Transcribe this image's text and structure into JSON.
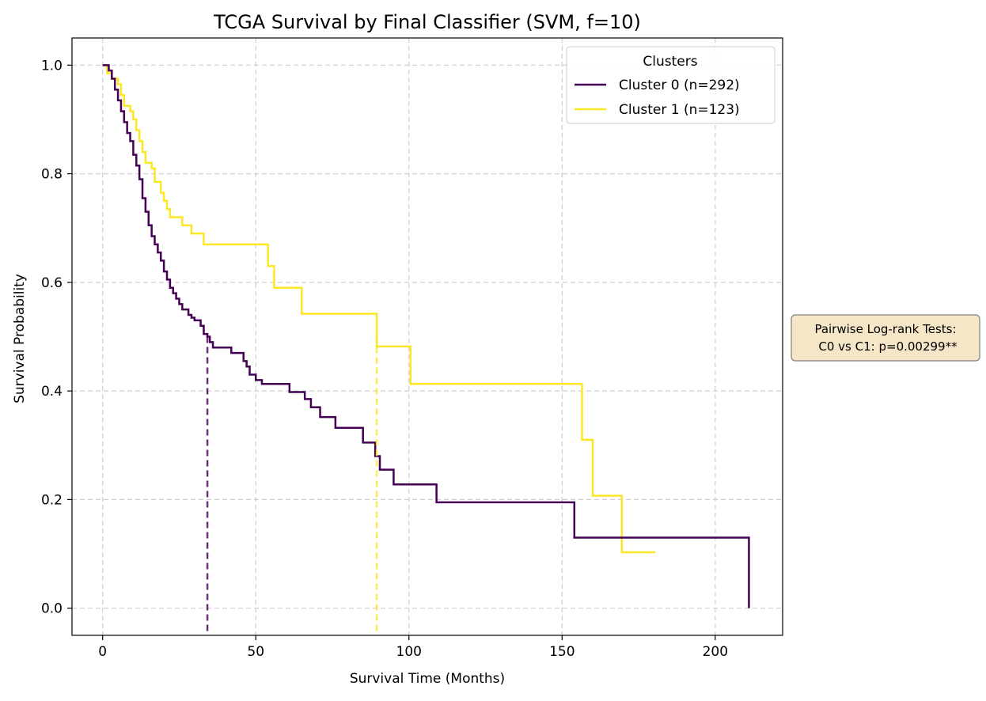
{
  "chart_data": {
    "type": "line",
    "step": true,
    "title": "TCGA Survival by Final Classifier (SVM, f=10)",
    "xlabel": "Survival Time (Months)",
    "ylabel": "Survival Probability",
    "xlim": [
      -10,
      222
    ],
    "ylim": [
      -0.05,
      1.05
    ],
    "xticks": [
      0,
      50,
      100,
      150,
      200
    ],
    "yticks": [
      0.0,
      0.2,
      0.4,
      0.6,
      0.8,
      1.0
    ],
    "xtick_labels": [
      "0",
      "50",
      "100",
      "150",
      "200"
    ],
    "ytick_labels": [
      "0.0",
      "0.2",
      "0.4",
      "0.6",
      "0.8",
      "1.0"
    ],
    "grid": true,
    "legend": {
      "title": "Clusters",
      "position": "top-right"
    },
    "annotation": {
      "lines": [
        "Pairwise Log-rank Tests:",
        "C0 vs C1: p=0.00299**"
      ],
      "position": "right-outside"
    },
    "series": [
      {
        "name": "Cluster 0 (n=292)",
        "color": "#440154",
        "median": 34.2,
        "points": [
          [
            0,
            1.0
          ],
          [
            1.5,
            1.0
          ],
          [
            2,
            0.99
          ],
          [
            3,
            0.975
          ],
          [
            4,
            0.955
          ],
          [
            5,
            0.935
          ],
          [
            6,
            0.915
          ],
          [
            7,
            0.895
          ],
          [
            8,
            0.875
          ],
          [
            9,
            0.86
          ],
          [
            10,
            0.835
          ],
          [
            11,
            0.815
          ],
          [
            12,
            0.79
          ],
          [
            13,
            0.755
          ],
          [
            14,
            0.73
          ],
          [
            15,
            0.705
          ],
          [
            16,
            0.685
          ],
          [
            17,
            0.67
          ],
          [
            18,
            0.655
          ],
          [
            19,
            0.64
          ],
          [
            20,
            0.62
          ],
          [
            21,
            0.605
          ],
          [
            22,
            0.59
          ],
          [
            23,
            0.58
          ],
          [
            24,
            0.57
          ],
          [
            25,
            0.56
          ],
          [
            26,
            0.55
          ],
          [
            28,
            0.54
          ],
          [
            29,
            0.535
          ],
          [
            30,
            0.53
          ],
          [
            32,
            0.52
          ],
          [
            33,
            0.505
          ],
          [
            34.2,
            0.5
          ],
          [
            35,
            0.49
          ],
          [
            36,
            0.48
          ],
          [
            42,
            0.47
          ],
          [
            46,
            0.455
          ],
          [
            47,
            0.445
          ],
          [
            48,
            0.43
          ],
          [
            50,
            0.42
          ],
          [
            52,
            0.413
          ],
          [
            61,
            0.398
          ],
          [
            66,
            0.385
          ],
          [
            68,
            0.37
          ],
          [
            71,
            0.352
          ],
          [
            76,
            0.332
          ],
          [
            85,
            0.305
          ],
          [
            89,
            0.28
          ],
          [
            90.5,
            0.255
          ],
          [
            95,
            0.228
          ],
          [
            109,
            0.195
          ],
          [
            154,
            0.13
          ],
          [
            211,
            0.0
          ]
        ]
      },
      {
        "name": "Cluster 1 (n=123)",
        "color": "#fde725",
        "median": 89.5,
        "points": [
          [
            0,
            1.0
          ],
          [
            1.5,
            0.985
          ],
          [
            3,
            0.975
          ],
          [
            5,
            0.965
          ],
          [
            6,
            0.945
          ],
          [
            7,
            0.925
          ],
          [
            9,
            0.915
          ],
          [
            10,
            0.9
          ],
          [
            11,
            0.88
          ],
          [
            12,
            0.86
          ],
          [
            13,
            0.84
          ],
          [
            14,
            0.82
          ],
          [
            16,
            0.81
          ],
          [
            17,
            0.785
          ],
          [
            19,
            0.765
          ],
          [
            20,
            0.75
          ],
          [
            21,
            0.735
          ],
          [
            22,
            0.72
          ],
          [
            26,
            0.705
          ],
          [
            29,
            0.69
          ],
          [
            33,
            0.67
          ],
          [
            54,
            0.63
          ],
          [
            56,
            0.59
          ],
          [
            65,
            0.542
          ],
          [
            89.5,
            0.482
          ],
          [
            100.5,
            0.413
          ],
          [
            156.5,
            0.31
          ],
          [
            160,
            0.207
          ],
          [
            169.5,
            0.103
          ],
          [
            180.5,
            0.103
          ]
        ]
      }
    ]
  }
}
